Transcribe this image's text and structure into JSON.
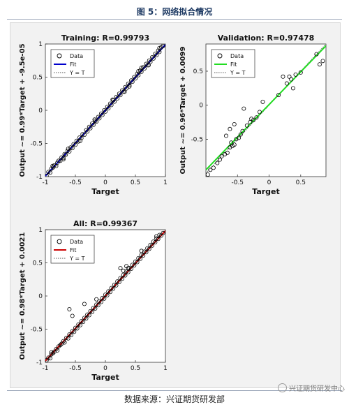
{
  "caption": "图 5：网络拟合情况",
  "source": "数据来源：兴证期货研发部",
  "watermark": "兴证期货研发中心",
  "colors": {
    "background": "#f2f2f2",
    "axes": "#ffffff",
    "data_marker": "#000000"
  },
  "chart_data": [
    {
      "type": "scatter",
      "title": "Training: R=0.99793",
      "xlabel": "Target",
      "ylabel": "Output ~= 0.99*Target + -9.5e-05",
      "xlim": [
        -1,
        1
      ],
      "ylim": [
        -1,
        1
      ],
      "xticks": [
        -1,
        -0.5,
        0,
        0.5,
        1
      ],
      "yticks": [
        -1,
        -0.5,
        0,
        0.5,
        1
      ],
      "legend": {
        "position": "top-left",
        "entries": [
          "Data",
          "Fit",
          "Y = T"
        ]
      },
      "fit": {
        "slope": 0.99,
        "intercept": -9.5e-05,
        "color": "#0000cc"
      },
      "series": [
        {
          "name": "Data",
          "marker": "circle",
          "x": [
            -0.98,
            -0.95,
            -0.92,
            -0.9,
            -0.87,
            -0.85,
            -0.82,
            -0.8,
            -0.78,
            -0.75,
            -0.73,
            -0.7,
            -0.68,
            -0.66,
            -0.63,
            -0.6,
            -0.58,
            -0.55,
            -0.53,
            -0.5,
            -0.48,
            -0.45,
            -0.43,
            -0.4,
            -0.38,
            -0.35,
            -0.32,
            -0.3,
            -0.27,
            -0.25,
            -0.22,
            -0.2,
            -0.17,
            -0.15,
            -0.12,
            -0.1,
            -0.07,
            -0.05,
            -0.02,
            0,
            0.03,
            0.05,
            0.08,
            0.1,
            0.13,
            0.15,
            0.18,
            0.2,
            0.23,
            0.25,
            0.28,
            0.3,
            0.33,
            0.35,
            0.38,
            0.4,
            0.43,
            0.45,
            0.48,
            0.5,
            0.53,
            0.55,
            0.58,
            0.6,
            0.63,
            0.65,
            0.68,
            0.7,
            0.73,
            0.75,
            0.78,
            0.8,
            0.83,
            0.85,
            0.88,
            0.9,
            0.93,
            0.96,
            -0.62,
            -0.42,
            -0.18,
            0.12,
            0.32,
            0.55,
            0.72,
            0.9,
            -0.88,
            -0.7,
            0.6,
            0.4
          ],
          "y": [
            -0.99,
            -0.93,
            -0.94,
            -0.88,
            -0.86,
            -0.83,
            -0.84,
            -0.79,
            -0.76,
            -0.76,
            -0.71,
            -0.72,
            -0.66,
            -0.67,
            -0.61,
            -0.62,
            -0.56,
            -0.57,
            -0.51,
            -0.52,
            -0.46,
            -0.47,
            -0.41,
            -0.42,
            -0.36,
            -0.37,
            -0.3,
            -0.32,
            -0.25,
            -0.27,
            -0.2,
            -0.22,
            -0.16,
            -0.17,
            -0.1,
            -0.12,
            -0.05,
            -0.07,
            0,
            -0.02,
            0.05,
            0.03,
            0.1,
            0.08,
            0.15,
            0.13,
            0.2,
            0.18,
            0.25,
            0.23,
            0.3,
            0.28,
            0.35,
            0.33,
            0.4,
            0.38,
            0.45,
            0.43,
            0.5,
            0.48,
            0.55,
            0.53,
            0.6,
            0.58,
            0.65,
            0.63,
            0.7,
            0.68,
            0.75,
            0.73,
            0.8,
            0.78,
            0.85,
            0.83,
            0.9,
            0.88,
            0.95,
            0.97,
            -0.58,
            -0.46,
            -0.14,
            0.16,
            0.28,
            0.59,
            0.68,
            0.94,
            -0.84,
            -0.74,
            0.64,
            0.36
          ]
        }
      ]
    },
    {
      "type": "scatter",
      "title": "Validation: R=0.97478",
      "xlabel": "Target",
      "ylabel": "Output ~= 0.96*Target + 0.0099",
      "xlim": [
        -1,
        0.9
      ],
      "ylim": [
        -1.05,
        0.9
      ],
      "xticks": [
        -0.5,
        0,
        0.5
      ],
      "yticks": [
        -0.5,
        0,
        0.5
      ],
      "legend": {
        "position": "top-left",
        "entries": [
          "Data",
          "Fit",
          "Y = T"
        ]
      },
      "fit": {
        "slope": 0.96,
        "intercept": 0.0099,
        "color": "#22dd22"
      },
      "series": [
        {
          "name": "Data",
          "marker": "circle",
          "x": [
            -0.97,
            -0.93,
            -0.88,
            -0.82,
            -0.78,
            -0.75,
            -0.7,
            -0.66,
            -0.62,
            -0.58,
            -0.55,
            -0.52,
            -0.48,
            -0.45,
            -0.42,
            -0.35,
            -0.3,
            -0.25,
            -0.2,
            -0.15,
            -0.62,
            -0.55,
            -0.4,
            -0.28,
            -0.1,
            0.15,
            0.22,
            0.28,
            0.32,
            0.35,
            0.38,
            0.42,
            0.5,
            0.75,
            0.8,
            0.85,
            -0.68,
            -0.6
          ],
          "y": [
            -1.02,
            -0.95,
            -0.92,
            -0.85,
            -0.8,
            -0.75,
            -0.72,
            -0.7,
            -0.62,
            -0.6,
            -0.58,
            -0.5,
            -0.48,
            -0.43,
            -0.38,
            -0.3,
            -0.25,
            -0.22,
            -0.18,
            -0.1,
            -0.35,
            -0.28,
            -0.05,
            -0.2,
            0.05,
            0.15,
            0.42,
            0.32,
            0.42,
            0.38,
            0.25,
            0.45,
            0.48,
            0.75,
            0.6,
            0.65,
            -0.45,
            -0.55
          ]
        }
      ]
    },
    {
      "type": "scatter",
      "title": "All: R=0.99367",
      "xlabel": "Target",
      "ylabel": "Output ~= 0.98*Target + 0.0021",
      "xlim": [
        -1,
        1
      ],
      "ylim": [
        -1,
        1
      ],
      "xticks": [
        -1,
        -0.5,
        0,
        0.5,
        1
      ],
      "yticks": [
        -1,
        -0.5,
        0,
        0.5,
        1
      ],
      "legend": {
        "position": "top-left",
        "entries": [
          "Data",
          "Fit",
          "Y = T"
        ]
      },
      "fit": {
        "slope": 0.98,
        "intercept": 0.0021,
        "color": "#cc0000"
      },
      "series": [
        {
          "name": "Data",
          "marker": "circle",
          "x": [
            -0.98,
            -0.95,
            -0.92,
            -0.9,
            -0.87,
            -0.85,
            -0.82,
            -0.8,
            -0.78,
            -0.75,
            -0.73,
            -0.7,
            -0.68,
            -0.65,
            -0.62,
            -0.6,
            -0.57,
            -0.55,
            -0.52,
            -0.5,
            -0.47,
            -0.45,
            -0.42,
            -0.4,
            -0.37,
            -0.35,
            -0.32,
            -0.3,
            -0.27,
            -0.25,
            -0.22,
            -0.2,
            -0.17,
            -0.15,
            -0.12,
            -0.1,
            -0.07,
            -0.05,
            -0.02,
            0,
            0.03,
            0.05,
            0.08,
            0.1,
            0.13,
            0.15,
            0.18,
            0.2,
            0.23,
            0.25,
            0.28,
            0.3,
            0.33,
            0.35,
            0.38,
            0.4,
            0.43,
            0.45,
            0.48,
            0.5,
            0.53,
            0.55,
            0.58,
            0.6,
            0.63,
            0.65,
            0.68,
            0.7,
            0.73,
            0.75,
            0.78,
            0.8,
            0.83,
            0.85,
            0.88,
            0.9,
            0.93,
            0.96,
            -0.6,
            -0.55,
            -0.35,
            -0.15,
            0.25,
            0.3,
            0.35,
            0.38,
            0.6,
            0.85,
            -0.9
          ],
          "y": [
            -0.97,
            -0.93,
            -0.94,
            -0.88,
            -0.86,
            -0.84,
            -0.8,
            -0.82,
            -0.76,
            -0.74,
            -0.72,
            -0.68,
            -0.7,
            -0.63,
            -0.64,
            -0.58,
            -0.59,
            -0.53,
            -0.54,
            -0.48,
            -0.49,
            -0.43,
            -0.44,
            -0.38,
            -0.39,
            -0.33,
            -0.34,
            -0.28,
            -0.29,
            -0.23,
            -0.24,
            -0.18,
            -0.19,
            -0.13,
            -0.14,
            -0.08,
            -0.09,
            -0.03,
            -0.04,
            0.02,
            0.01,
            0.07,
            0.06,
            0.12,
            0.11,
            0.17,
            0.16,
            0.22,
            0.21,
            0.27,
            0.26,
            0.32,
            0.31,
            0.37,
            0.36,
            0.42,
            0.41,
            0.47,
            0.46,
            0.52,
            0.51,
            0.57,
            0.56,
            0.62,
            0.61,
            0.67,
            0.66,
            0.72,
            0.71,
            0.77,
            0.76,
            0.82,
            0.81,
            0.87,
            0.86,
            0.92,
            0.91,
            0.95,
            -0.2,
            -0.3,
            -0.12,
            -0.05,
            0.42,
            0.38,
            0.45,
            0.42,
            0.68,
            0.9,
            -0.85
          ]
        }
      ]
    }
  ]
}
